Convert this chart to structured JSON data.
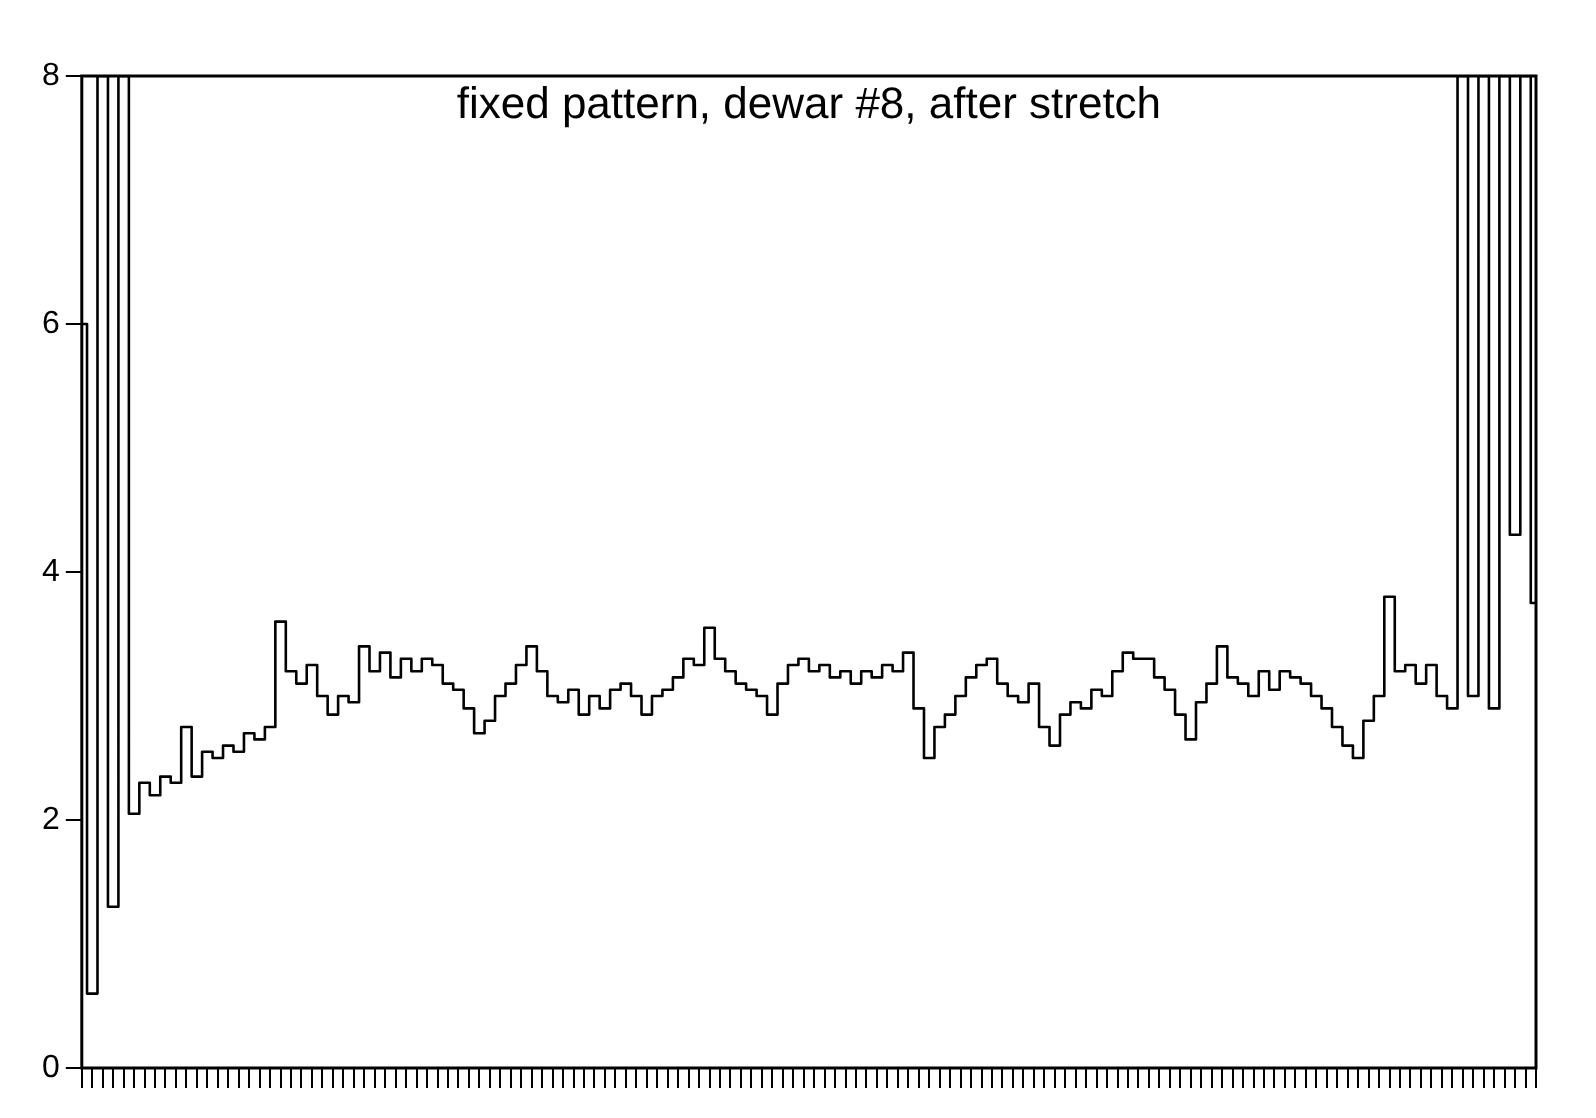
{
  "chart_data": {
    "type": "step",
    "title": "fixed pattern, dewar #8, after stretch",
    "categories": [
      null,
      null,
      null,
      null,
      null,
      null,
      null,
      null,
      null,
      null,
      null,
      null,
      null,
      null,
      null,
      null,
      null,
      null,
      null,
      null,
      null,
      null,
      null,
      null,
      null,
      null,
      null,
      null,
      null,
      null,
      null,
      null,
      null,
      null,
      null,
      null,
      null,
      null,
      null,
      null,
      null,
      null,
      null,
      null,
      null,
      null,
      null,
      null,
      null,
      null,
      null,
      null,
      null,
      null,
      null,
      null,
      null,
      null,
      null,
      null,
      null,
      null,
      null,
      null,
      null,
      null,
      null,
      null,
      null,
      null,
      null,
      null,
      null,
      null,
      null,
      null,
      null,
      null,
      null,
      null,
      null,
      null,
      null,
      null,
      null,
      null,
      null,
      null,
      null,
      null,
      null,
      null,
      null,
      null,
      null,
      null,
      null,
      null,
      null,
      null,
      null,
      null,
      null,
      null,
      null,
      null,
      null,
      null,
      null,
      null,
      null,
      null,
      null,
      null,
      null,
      null,
      null,
      null,
      null,
      null,
      null,
      null,
      null,
      null,
      null,
      null,
      null,
      null,
      null,
      null,
      null,
      null,
      null,
      null,
      null,
      null,
      null,
      null,
      null,
      null
    ],
    "series": [
      {
        "color": "#000000",
        "values": [
          6.0,
          0.6,
          8,
          1.3,
          8,
          2.05,
          2.3,
          2.2,
          2.35,
          2.3,
          2.75,
          2.35,
          2.55,
          2.5,
          2.6,
          2.55,
          2.7,
          2.65,
          2.75,
          3.6,
          3.2,
          3.1,
          3.25,
          3.0,
          2.85,
          3.0,
          2.95,
          3.4,
          3.2,
          3.35,
          3.15,
          3.3,
          3.2,
          3.3,
          3.25,
          3.1,
          3.05,
          2.9,
          2.7,
          2.8,
          3.0,
          3.1,
          3.25,
          3.4,
          3.2,
          3.0,
          2.95,
          3.05,
          2.85,
          3.0,
          2.9,
          3.05,
          3.1,
          3.0,
          2.85,
          3.0,
          3.05,
          3.15,
          3.3,
          3.25,
          3.55,
          3.3,
          3.2,
          3.1,
          3.05,
          3.0,
          2.85,
          3.1,
          3.25,
          3.3,
          3.2,
          3.25,
          3.15,
          3.2,
          3.1,
          3.2,
          3.15,
          3.25,
          3.2,
          3.35,
          2.9,
          2.5,
          2.75,
          2.85,
          3.0,
          3.15,
          3.25,
          3.3,
          3.1,
          3.0,
          2.95,
          3.1,
          2.75,
          2.6,
          2.85,
          2.95,
          2.9,
          3.05,
          3.0,
          3.2,
          3.35,
          3.3,
          3.3,
          3.15,
          3.05,
          2.85,
          2.65,
          2.95,
          3.1,
          3.4,
          3.15,
          3.1,
          3.0,
          3.2,
          3.05,
          3.2,
          3.15,
          3.1,
          3.0,
          2.9,
          2.75,
          2.6,
          2.5,
          2.8,
          3.0,
          3.8,
          3.2,
          3.25,
          3.1,
          3.25,
          3.0,
          2.9,
          8,
          3.0,
          8,
          2.9,
          8,
          4.3,
          8,
          3.75
        ]
      }
    ],
    "ylim": [
      0,
      8
    ],
    "yticks": [
      0,
      2,
      4,
      6,
      8
    ],
    "tick_labels": "y",
    "grid": false,
    "legend": false
  }
}
